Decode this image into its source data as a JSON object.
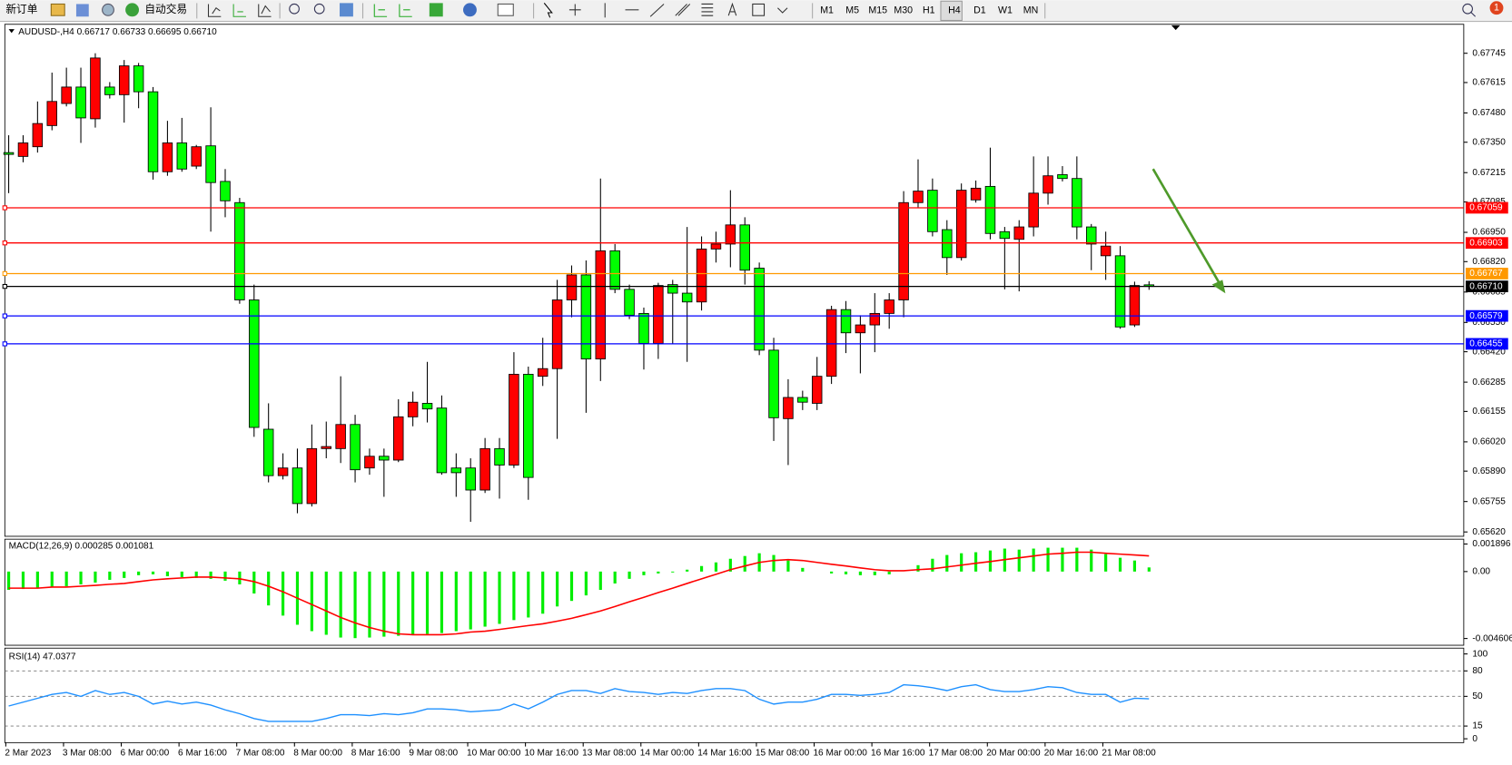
{
  "toolbar": {
    "new_order": "新订单",
    "auto_trading": "自动交易",
    "timeframes": [
      "M1",
      "M5",
      "M15",
      "M30",
      "H1",
      "H4",
      "D1",
      "W1",
      "MN"
    ],
    "notifications": 1
  },
  "chart_data": [
    {
      "type": "candlestick",
      "title": "AUDUSD-,H4 0.66717 0.66733 0.66695 0.66710",
      "x": [
        "2 Mar 2023",
        null,
        null,
        null,
        "3 Mar 08:00",
        null,
        null,
        null,
        "6 Mar 00:00",
        null,
        null,
        null,
        "6 Mar 16:00",
        null,
        null,
        null,
        "7 Mar 08:00",
        null,
        null,
        null,
        "8 Mar 00:00",
        null,
        null,
        null,
        "8 Mar 16:00",
        null,
        null,
        null,
        "9 Mar 08:00",
        null,
        null,
        null,
        "10 Mar 00:00",
        null,
        null,
        null,
        "10 Mar 16:00",
        null,
        null,
        null,
        "13 Mar 08:00",
        null,
        null,
        null,
        "14 Mar 00:00",
        null,
        null,
        null,
        "14 Mar 16:00",
        null,
        null,
        null,
        "15 Mar 08:00",
        null,
        null,
        null,
        "16 Mar 00:00",
        null,
        null,
        null,
        "16 Mar 16:00",
        null,
        null,
        null,
        "17 Mar 08:00",
        null,
        null,
        null,
        "20 Mar 00:00",
        null,
        null,
        null,
        "20 Mar 16:00",
        null,
        null,
        null,
        "21 Mar 08:00",
        null,
        null,
        null
      ],
      "open": [
        0.67304,
        0.67287,
        0.6733,
        0.67424,
        0.67522,
        0.67595,
        0.67454,
        0.67595,
        0.67561,
        0.67689,
        0.67574,
        0.67219,
        0.67347,
        0.67244,
        0.67334,
        0.67176,
        0.67082,
        0.6665,
        0.66076,
        0.6587,
        0.65904,
        0.65746,
        0.6599,
        0.6599,
        0.66097,
        0.65904,
        0.65956,
        0.65939,
        0.66131,
        0.66191,
        0.6617,
        0.65904,
        0.65904,
        0.65806,
        0.6599,
        0.65917,
        0.6632,
        0.66311,
        0.66345,
        0.6665,
        0.66761,
        0.66388,
        0.66868,
        0.66697,
        0.6659,
        0.66457,
        0.66718,
        0.6668,
        0.66641,
        0.66876,
        0.66898,
        0.66983,
        0.66791,
        0.66427,
        0.66123,
        0.66217,
        0.66191,
        0.66311,
        0.66607,
        0.66504,
        0.66539,
        0.6659,
        0.6665,
        0.67082,
        0.67137,
        0.66962,
        0.66838,
        0.67094,
        0.67154,
        0.66953,
        0.66919,
        0.66974,
        0.67124,
        0.67206,
        0.67189,
        0.66974,
        0.66846,
        0.66846,
        0.66539,
        0.66717
      ],
      "high": [
        0.67381,
        0.67381,
        0.67531,
        0.67659,
        0.67681,
        0.67681,
        0.67745,
        0.67617,
        0.67715,
        0.67702,
        0.67595,
        0.67445,
        0.67458,
        0.67338,
        0.67505,
        0.67231,
        0.67103,
        0.66718,
        0.66191,
        0.65969,
        0.6599,
        0.66097,
        0.6611,
        0.66311,
        0.6614,
        0.6599,
        0.6599,
        0.66209,
        0.66243,
        0.66375,
        0.66226,
        0.65969,
        0.65947,
        0.66037,
        0.66037,
        0.66418,
        0.66354,
        0.66482,
        0.66739,
        0.66803,
        0.66825,
        0.67189,
        0.66898,
        0.66718,
        0.66616,
        0.66726,
        0.66739,
        0.66974,
        0.66932,
        0.66953,
        0.67137,
        0.67017,
        0.66816,
        0.66482,
        0.66298,
        0.66247,
        0.66397,
        0.66624,
        0.66645,
        0.66582,
        0.6668,
        0.6668,
        0.67133,
        0.67274,
        0.67189,
        0.67004,
        0.67167,
        0.6718,
        0.67326,
        0.66974,
        0.67004,
        0.67287,
        0.67287,
        0.67244,
        0.67287,
        0.66987,
        0.66953,
        0.66889,
        0.66731,
        0.66733
      ],
      "low": [
        0.67124,
        0.67261,
        0.67304,
        0.67403,
        0.67509,
        0.67347,
        0.67415,
        0.67544,
        0.67437,
        0.67501,
        0.67184,
        0.67201,
        0.67219,
        0.67231,
        0.66953,
        0.67017,
        0.66633,
        0.66042,
        0.6584,
        0.65853,
        0.65703,
        0.65733,
        0.65947,
        0.65926,
        0.6584,
        0.65874,
        0.65776,
        0.6593,
        0.66089,
        0.66106,
        0.65874,
        0.65776,
        0.65665,
        0.65793,
        0.65768,
        0.65904,
        0.65763,
        0.66268,
        0.66033,
        0.66573,
        0.66149,
        0.6629,
        0.6668,
        0.66565,
        0.66341,
        0.66388,
        0.66453,
        0.66375,
        0.66603,
        0.66816,
        0.66795,
        0.66718,
        0.66405,
        0.66024,
        0.65917,
        0.66161,
        0.66161,
        0.66277,
        0.66414,
        0.66324,
        0.66418,
        0.66522,
        0.66573,
        0.6706,
        0.66932,
        0.66761,
        0.66825,
        0.67082,
        0.66919,
        0.66697,
        0.66688,
        0.66932,
        0.67073,
        0.67176,
        0.66919,
        0.66782,
        0.66739,
        0.66522,
        0.6653,
        0.66695
      ],
      "close": [
        0.67296,
        0.67347,
        0.67433,
        0.67531,
        0.67595,
        0.67458,
        0.67724,
        0.67561,
        0.67689,
        0.67574,
        0.67219,
        0.67347,
        0.67231,
        0.6733,
        0.67171,
        0.6709,
        0.6665,
        0.66084,
        0.6587,
        0.65904,
        0.65746,
        0.6599,
        0.65999,
        0.66097,
        0.65896,
        0.65956,
        0.65939,
        0.66131,
        0.66196,
        0.66166,
        0.65883,
        0.65883,
        0.65806,
        0.6599,
        0.65917,
        0.6632,
        0.65862,
        0.66345,
        0.6665,
        0.66761,
        0.66388,
        0.66868,
        0.66697,
        0.66582,
        0.66457,
        0.66714,
        0.6668,
        0.66641,
        0.66876,
        0.66898,
        0.66983,
        0.66782,
        0.66427,
        0.66127,
        0.66217,
        0.66196,
        0.66311,
        0.66607,
        0.66504,
        0.66539,
        0.6659,
        0.6665,
        0.67082,
        0.67133,
        0.66953,
        0.66838,
        0.67137,
        0.67146,
        0.66945,
        0.66923,
        0.66974,
        0.67124,
        0.67201,
        0.67189,
        0.66974,
        0.66898,
        0.66889,
        0.6653,
        0.66714,
        0.6671
      ],
      "up_color": "#ff0000",
      "down_color": "#00ff00",
      "ylim": [
        0.65605,
        0.67865
      ],
      "yticks": [
        0.67745,
        0.67615,
        {
          "value": 0.6748,
          "label": "0.67480"
        },
        {
          "value": 0.6735,
          "label": "0.67350"
        },
        0.67215,
        0.67085,
        {
          "value": 0.6695,
          "label": "0.66950"
        },
        {
          "value": 0.6682,
          "label": "0.66820"
        },
        0.66685,
        {
          "value": 0.6655,
          "label": "0.66550"
        },
        {
          "value": 0.6642,
          "label": "0.66420"
        },
        0.66285,
        0.66155,
        {
          "value": 0.6602,
          "label": "0.66020"
        },
        {
          "value": 0.6589,
          "label": "0.65890"
        },
        0.65755,
        {
          "value": 0.6562,
          "label": "0.65620"
        }
      ],
      "levels": [
        {
          "value": 0.67059,
          "color": "#ff0000"
        },
        {
          "value": 0.66903,
          "color": "#ff0000"
        },
        {
          "value": 0.66767,
          "color": "#ff9900"
        },
        {
          "value": 0.6671,
          "label": "0.66710",
          "color": "#000000"
        },
        {
          "value": 0.66579,
          "color": "#0000ff"
        },
        {
          "value": 0.66455,
          "color": "#0000ff"
        }
      ],
      "grid": false
    },
    {
      "type": "macd",
      "title": "MACD(12,26,9) 0.000285 0.001081",
      "histogram": {
        "color": "#00ee00",
        "values": [
          -0.00126,
          -0.0012,
          -0.00114,
          -0.00107,
          -0.00101,
          -0.00088,
          -0.00076,
          -0.00057,
          -0.00044,
          -0.00025,
          -0.00019,
          -0.00032,
          -0.00038,
          -0.00044,
          -0.0005,
          -0.00063,
          -0.00088,
          -0.00151,
          -0.00233,
          -0.00303,
          -0.00366,
          -0.0041,
          -0.00435,
          -0.00454,
          -0.00458,
          -0.00454,
          -0.00448,
          -0.00442,
          -0.00435,
          -0.00429,
          -0.00423,
          -0.0041,
          -0.00398,
          -0.00379,
          -0.0036,
          -0.00334,
          -0.00316,
          -0.0029,
          -0.0024,
          -0.00202,
          -0.00164,
          -0.00126,
          -0.00082,
          -0.0005,
          -0.00025,
          -0.00013,
          -6e-05,
          0.00013,
          0.00038,
          0.00063,
          0.00088,
          0.00107,
          0.00126,
          0.00114,
          0.00076,
          0.00025,
          0,
          -0.00013,
          -0.00019,
          -0.00025,
          -0.00025,
          -0.00019,
          0,
          0.00044,
          0.00088,
          0.00114,
          0.00126,
          0.00133,
          0.00145,
          0.00158,
          0.00151,
          0.00158,
          0.00164,
          0.00164,
          0.00164,
          0.00151,
          0.0012,
          0.00095,
          0.00076,
          0.000285
        ]
      },
      "signal": {
        "color": "#ff0000",
        "values": [
          -0.00114,
          -0.00114,
          -0.00114,
          -0.00107,
          -0.00107,
          -0.00101,
          -0.00095,
          -0.00088,
          -0.00082,
          -0.00069,
          -0.00057,
          -0.0005,
          -0.00044,
          -0.00038,
          -0.00038,
          -0.00044,
          -0.0005,
          -0.00069,
          -0.00101,
          -0.00139,
          -0.00183,
          -0.00227,
          -0.00271,
          -0.00316,
          -0.00353,
          -0.00385,
          -0.0041,
          -0.00429,
          -0.00435,
          -0.00435,
          -0.00435,
          -0.00429,
          -0.00416,
          -0.0041,
          -0.00398,
          -0.00385,
          -0.00372,
          -0.0036,
          -0.00341,
          -0.00322,
          -0.00297,
          -0.00271,
          -0.0024,
          -0.00208,
          -0.00177,
          -0.00145,
          -0.00114,
          -0.00082,
          -0.0005,
          -0.00019,
          0.00013,
          0.00038,
          0.00063,
          0.00076,
          0.00082,
          0.00076,
          0.00063,
          0.0005,
          0.00038,
          0.00025,
          0.00013,
          6e-05,
          6e-05,
          0.00013,
          0.00019,
          0.00032,
          0.00044,
          0.00057,
          0.00069,
          0.00082,
          0.00095,
          0.00107,
          0.0012,
          0.00126,
          0.00133,
          0.00133,
          0.00126,
          0.0012,
          0.00114,
          0.001081
        ]
      },
      "ylim": [
        -0.004606,
        0.001896
      ],
      "yticks": [
        0.001896,
        {
          "value": 0,
          "label": "0.00"
        },
        -0.004606
      ],
      "grid": false
    },
    {
      "type": "line",
      "title": "RSI(14) 47.0377",
      "color": "#1e90ff",
      "values": [
        38.6,
        43.2,
        47.7,
        52.3,
        54.5,
        50.0,
        56.8,
        52.3,
        54.5,
        50.0,
        40.9,
        44.3,
        40.9,
        43.2,
        39.8,
        34.1,
        29.5,
        23.9,
        20.5,
        20.5,
        20.5,
        20.5,
        23.9,
        28.4,
        28.4,
        27.3,
        29.5,
        28.4,
        30.7,
        35.2,
        35.2,
        34.1,
        31.8,
        33.0,
        34.1,
        40.9,
        35.2,
        43.2,
        52.3,
        56.8,
        56.8,
        53.4,
        59.1,
        55.7,
        54.5,
        52.3,
        54.5,
        53.4,
        56.8,
        59.1,
        59.1,
        56.8,
        46.6,
        40.9,
        43.2,
        43.2,
        46.6,
        52.3,
        52.3,
        51.1,
        52.3,
        54.5,
        63.6,
        62.5,
        60.2,
        56.8,
        61.4,
        63.6,
        58.0,
        55.7,
        55.7,
        58.0,
        61.4,
        60.2,
        54.5,
        52.3,
        52.3,
        43.2,
        47.7,
        47.0377
      ],
      "ylim": [
        0,
        100
      ],
      "yticks": [
        100,
        80,
        50,
        15,
        0
      ],
      "grid": true
    }
  ]
}
